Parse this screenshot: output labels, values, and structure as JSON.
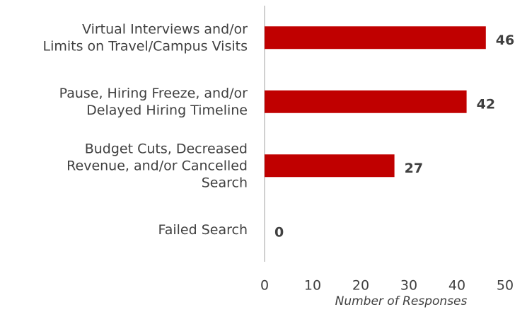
{
  "chart_data": {
    "type": "barh",
    "categories": [
      "Virtual Interviews and/or\nLimits on Travel/Campus Visits",
      "Pause, Hiring Freeze, and/or\nDelayed Hiring Timeline",
      "Budget Cuts, Decreased\nRevenue, and/or Cancelled\nSearch",
      "Failed Search"
    ],
    "values": [
      46,
      42,
      27,
      0
    ],
    "color": "#c00000",
    "xlim": [
      0,
      50
    ],
    "xticks": [
      0,
      10,
      20,
      30,
      40,
      50
    ],
    "xlabel": "Number of Responses",
    "grid": false
  }
}
